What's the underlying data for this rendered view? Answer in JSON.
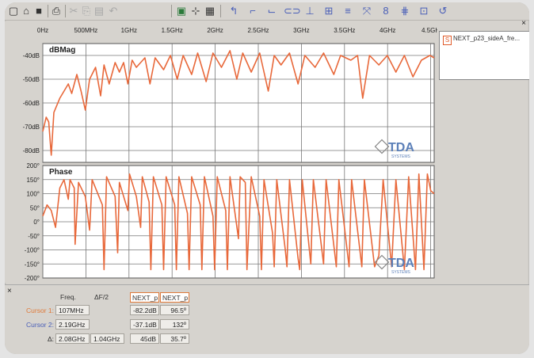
{
  "colors": {
    "trace": "#e8683a",
    "plot_bg": "#ffffff",
    "accent_blue": "#4a5fb8"
  },
  "toolbar": {
    "icons": [
      "new-file-icon",
      "open-folder-icon",
      "save-icon",
      "print-icon",
      "cut-icon",
      "copy-icon",
      "paste-icon",
      "undo-icon",
      "zoom-fit-icon",
      "markers-icon",
      "grid-icon",
      "line-tool-icon",
      "step-tool-icon",
      "corner-tool-icon",
      "resistor-icon",
      "capacitor-icon",
      "shield-icon",
      "stack-icon",
      "cross-tool-icon",
      "coupled-icon",
      "bus-icon",
      "model-icon",
      "return-icon"
    ]
  },
  "chart_data": [
    {
      "type": "line",
      "title": "dBMag",
      "x_tick_labels": [
        "0Hz",
        "500MHz",
        "1GHz",
        "1.5GHz",
        "2GHz",
        "2.5GHz",
        "3GHz",
        "3.5GHz",
        "4GHz",
        "4.5GH"
      ],
      "y_tick_labels": [
        "-40dB",
        "-50dB",
        "-60dB",
        "-70dB",
        "-80dB"
      ],
      "ylim": [
        -85,
        -35
      ],
      "xlim": [
        0,
        4.6
      ],
      "grid": true,
      "series": [
        {
          "name": "NEXT_p23_sideA_fre...",
          "points": [
            [
              0,
              -72
            ],
            [
              0.04,
              -66
            ],
            [
              0.07,
              -68
            ],
            [
              0.1,
              -82
            ],
            [
              0.13,
              -64
            ],
            [
              0.2,
              -58
            ],
            [
              0.3,
              -52
            ],
            [
              0.34,
              -56
            ],
            [
              0.4,
              -48
            ],
            [
              0.45,
              -55
            ],
            [
              0.5,
              -63
            ],
            [
              0.55,
              -50
            ],
            [
              0.62,
              -45
            ],
            [
              0.68,
              -57
            ],
            [
              0.72,
              -44
            ],
            [
              0.78,
              -52
            ],
            [
              0.85,
              -43
            ],
            [
              0.9,
              -47
            ],
            [
              0.95,
              -43
            ],
            [
              1.0,
              -52
            ],
            [
              1.05,
              -42
            ],
            [
              1.1,
              -45
            ],
            [
              1.2,
              -41
            ],
            [
              1.26,
              -52
            ],
            [
              1.32,
              -41
            ],
            [
              1.42,
              -46
            ],
            [
              1.5,
              -40
            ],
            [
              1.58,
              -50
            ],
            [
              1.65,
              -40
            ],
            [
              1.75,
              -48
            ],
            [
              1.82,
              -39
            ],
            [
              1.92,
              -51
            ],
            [
              2.0,
              -39
            ],
            [
              2.1,
              -45
            ],
            [
              2.2,
              -38
            ],
            [
              2.28,
              -50
            ],
            [
              2.35,
              -39
            ],
            [
              2.45,
              -47
            ],
            [
              2.55,
              -39
            ],
            [
              2.65,
              -55
            ],
            [
              2.72,
              -40
            ],
            [
              2.8,
              -44
            ],
            [
              2.9,
              -39
            ],
            [
              3.0,
              -52
            ],
            [
              3.08,
              -40
            ],
            [
              3.2,
              -45
            ],
            [
              3.3,
              -39
            ],
            [
              3.42,
              -48
            ],
            [
              3.5,
              -40
            ],
            [
              3.62,
              -42
            ],
            [
              3.7,
              -40
            ],
            [
              3.76,
              -58
            ],
            [
              3.84,
              -40
            ],
            [
              3.95,
              -44
            ],
            [
              4.05,
              -40
            ],
            [
              4.15,
              -47
            ],
            [
              4.25,
              -40
            ],
            [
              4.35,
              -49
            ],
            [
              4.45,
              -42
            ],
            [
              4.55,
              -40
            ],
            [
              4.6,
              -41
            ]
          ]
        }
      ]
    },
    {
      "type": "line",
      "title": "Phase",
      "x_tick_labels": [],
      "y_tick_labels": [
        "200°",
        "150°",
        "100°",
        "50°",
        "0°",
        "-50°",
        "-100°",
        "-150°",
        "-200°"
      ],
      "ylim": [
        -200,
        200
      ],
      "xlim": [
        0,
        4.6
      ],
      "grid": true,
      "series": [
        {
          "name": "NEXT_p23_sideA_fre...",
          "points": [
            [
              0,
              20
            ],
            [
              0.05,
              60
            ],
            [
              0.1,
              40
            ],
            [
              0.15,
              -20
            ],
            [
              0.2,
              120
            ],
            [
              0.25,
              150
            ],
            [
              0.3,
              80
            ],
            [
              0.32,
              150
            ],
            [
              0.37,
              120
            ],
            [
              0.38,
              -80
            ],
            [
              0.42,
              140
            ],
            [
              0.5,
              90
            ],
            [
              0.55,
              -30
            ],
            [
              0.58,
              150
            ],
            [
              0.7,
              60
            ],
            [
              0.72,
              -170
            ],
            [
              0.75,
              160
            ],
            [
              0.85,
              90
            ],
            [
              0.88,
              -110
            ],
            [
              0.9,
              140
            ],
            [
              1.0,
              40
            ],
            [
              1.02,
              170
            ],
            [
              1.1,
              90
            ],
            [
              1.15,
              -20
            ],
            [
              1.17,
              160
            ],
            [
              1.25,
              70
            ],
            [
              1.27,
              -170
            ],
            [
              1.3,
              160
            ],
            [
              1.4,
              60
            ],
            [
              1.42,
              -170
            ],
            [
              1.45,
              160
            ],
            [
              1.55,
              60
            ],
            [
              1.57,
              -170
            ],
            [
              1.6,
              160
            ],
            [
              1.7,
              30
            ],
            [
              1.72,
              -170
            ],
            [
              1.75,
              160
            ],
            [
              1.85,
              60
            ],
            [
              1.87,
              -170
            ],
            [
              1.9,
              160
            ],
            [
              2.0,
              20
            ],
            [
              2.02,
              -170
            ],
            [
              2.05,
              160
            ],
            [
              2.15,
              40
            ],
            [
              2.17,
              -170
            ],
            [
              2.2,
              160
            ],
            [
              2.3,
              -60
            ],
            [
              2.32,
              160
            ],
            [
              2.38,
              140
            ],
            [
              2.4,
              -170
            ],
            [
              2.45,
              160
            ],
            [
              2.55,
              20
            ],
            [
              2.57,
              -170
            ],
            [
              2.6,
              150
            ],
            [
              2.7,
              -40
            ],
            [
              2.72,
              -160
            ],
            [
              2.75,
              150
            ],
            [
              2.85,
              -100
            ],
            [
              2.87,
              -160
            ],
            [
              2.9,
              150
            ],
            [
              3.0,
              -130
            ],
            [
              3.02,
              -170
            ],
            [
              3.05,
              150
            ],
            [
              3.15,
              -150
            ],
            [
              3.18,
              150
            ],
            [
              3.3,
              -150
            ],
            [
              3.33,
              150
            ],
            [
              3.45,
              -160
            ],
            [
              3.48,
              150
            ],
            [
              3.6,
              -160
            ],
            [
              3.63,
              150
            ],
            [
              3.75,
              -160
            ],
            [
              3.78,
              150
            ],
            [
              3.9,
              -160
            ],
            [
              3.95,
              -120
            ],
            [
              4.0,
              150
            ],
            [
              4.1,
              -160
            ],
            [
              4.15,
              150
            ],
            [
              4.25,
              -170
            ],
            [
              4.3,
              160
            ],
            [
              4.38,
              -170
            ],
            [
              4.42,
              170
            ],
            [
              4.48,
              -170
            ],
            [
              4.52,
              170
            ],
            [
              4.56,
              110
            ],
            [
              4.6,
              100
            ]
          ]
        }
      ]
    }
  ],
  "watermark": {
    "brand": "TDA",
    "sub": "SYSTEMS"
  },
  "legend": {
    "marker": "S",
    "label": "NEXT_p23_sideA_fre..."
  },
  "bottom": {
    "close": "×",
    "headers": {
      "freq": "Freq.",
      "delta": "ΔF/2",
      "col1": "NEXT_p",
      "col2": "NEXT_p"
    },
    "rows": [
      {
        "label": "Cursor 1:",
        "freq": "107MHz",
        "half": "",
        "v1": "-82.2dB",
        "v2": "96.5º"
      },
      {
        "label": "Cursor 2:",
        "freq": "2.19GHz",
        "half": "",
        "v1": "-37.1dB",
        "v2": "132º"
      },
      {
        "label": "Δ:",
        "freq": "2.08GHz",
        "half": "1.04GHz",
        "v1": "45dB",
        "v2": "35.7º"
      }
    ]
  }
}
